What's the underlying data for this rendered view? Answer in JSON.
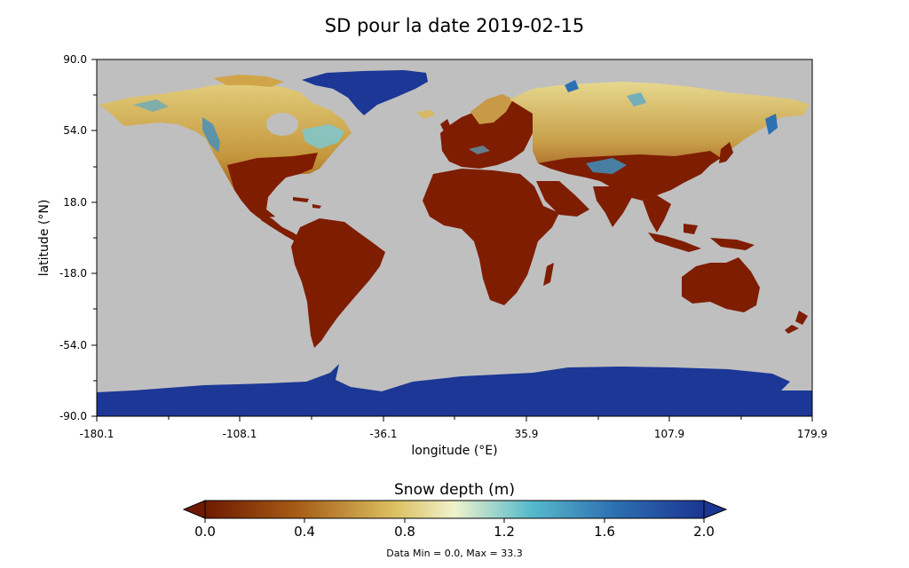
{
  "title": "SD pour la date 2019-02-15",
  "axes": {
    "xlabel": "longitude (°E)",
    "ylabel": "latitude (°N)",
    "xticks": [
      "-180.1",
      "-108.1",
      "-36.1",
      "35.9",
      "107.9",
      "179.9"
    ],
    "yticks": [
      "90.0",
      "54.0",
      "18.0",
      "-18.0",
      "-54.0",
      "-90.0"
    ]
  },
  "colorbar": {
    "title": "Snow depth (m)",
    "ticks": [
      "0.0",
      "0.4",
      "0.8",
      "1.2",
      "1.6",
      "2.0"
    ],
    "colors": [
      "#7a1c00",
      "#a85a12",
      "#d8b85a",
      "#eef0c8",
      "#4fb4c8",
      "#2a6cb0",
      "#1c3796"
    ],
    "extend": "both"
  },
  "colors": {
    "ocean": "#bfbfbf",
    "land_no_snow": "#7f1d00",
    "deep_snow": "#1c3796",
    "mid_snow": "#d4b25a"
  },
  "footnote": "Data Min = 0.0, Max = 33.3"
}
